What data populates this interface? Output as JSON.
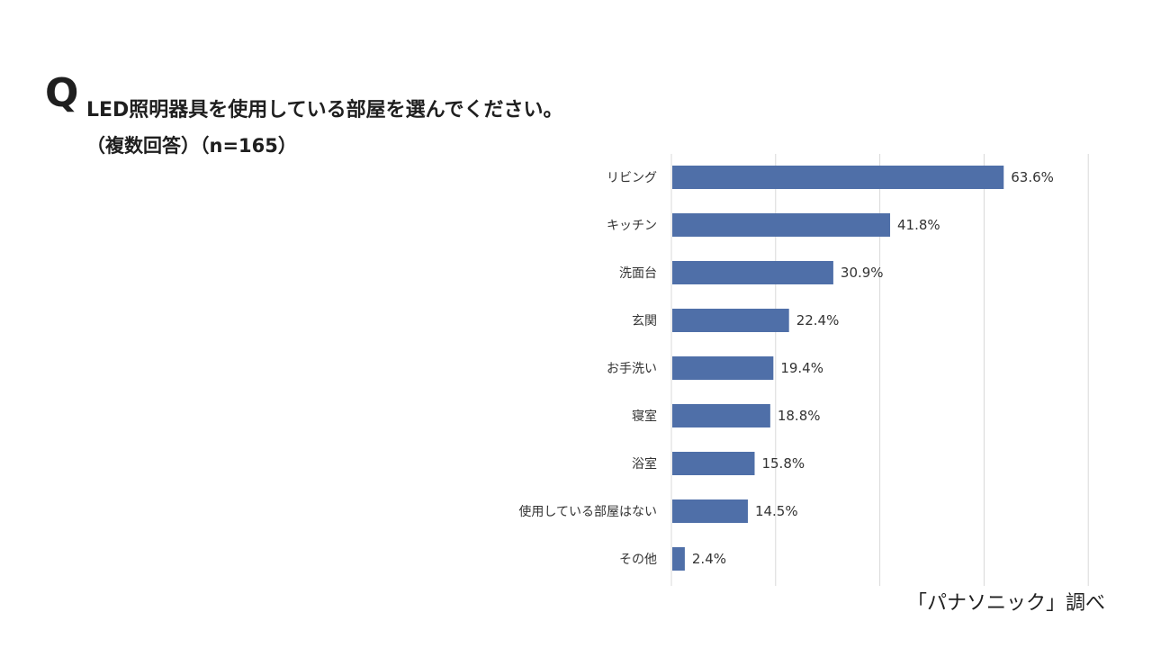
{
  "question": {
    "mark": "Q",
    "title": "LED照明器具を使用している部屋を選んでください。",
    "subtitle": "（複数回答）（n=165）"
  },
  "source": "「パナソニック」調べ",
  "colors": {
    "bar": "#4f6fa8",
    "grid": "#d9d9d9",
    "text": "#333333"
  },
  "chart_data": {
    "type": "bar",
    "orientation": "horizontal",
    "categories": [
      "リビング",
      "キッチン",
      "洗面台",
      "玄関",
      "お手洗い",
      "寝室",
      "浴室",
      "使用している部屋はない",
      "その他"
    ],
    "values": [
      63.6,
      41.8,
      30.9,
      22.4,
      19.4,
      18.8,
      15.8,
      14.5,
      2.4
    ],
    "value_labels": [
      "63.6%",
      "41.8%",
      "30.9%",
      "22.4%",
      "19.4%",
      "18.8%",
      "15.8%",
      "14.5%",
      "2.4%"
    ],
    "xlim": [
      0,
      80
    ],
    "grid": true,
    "legend": "none"
  }
}
